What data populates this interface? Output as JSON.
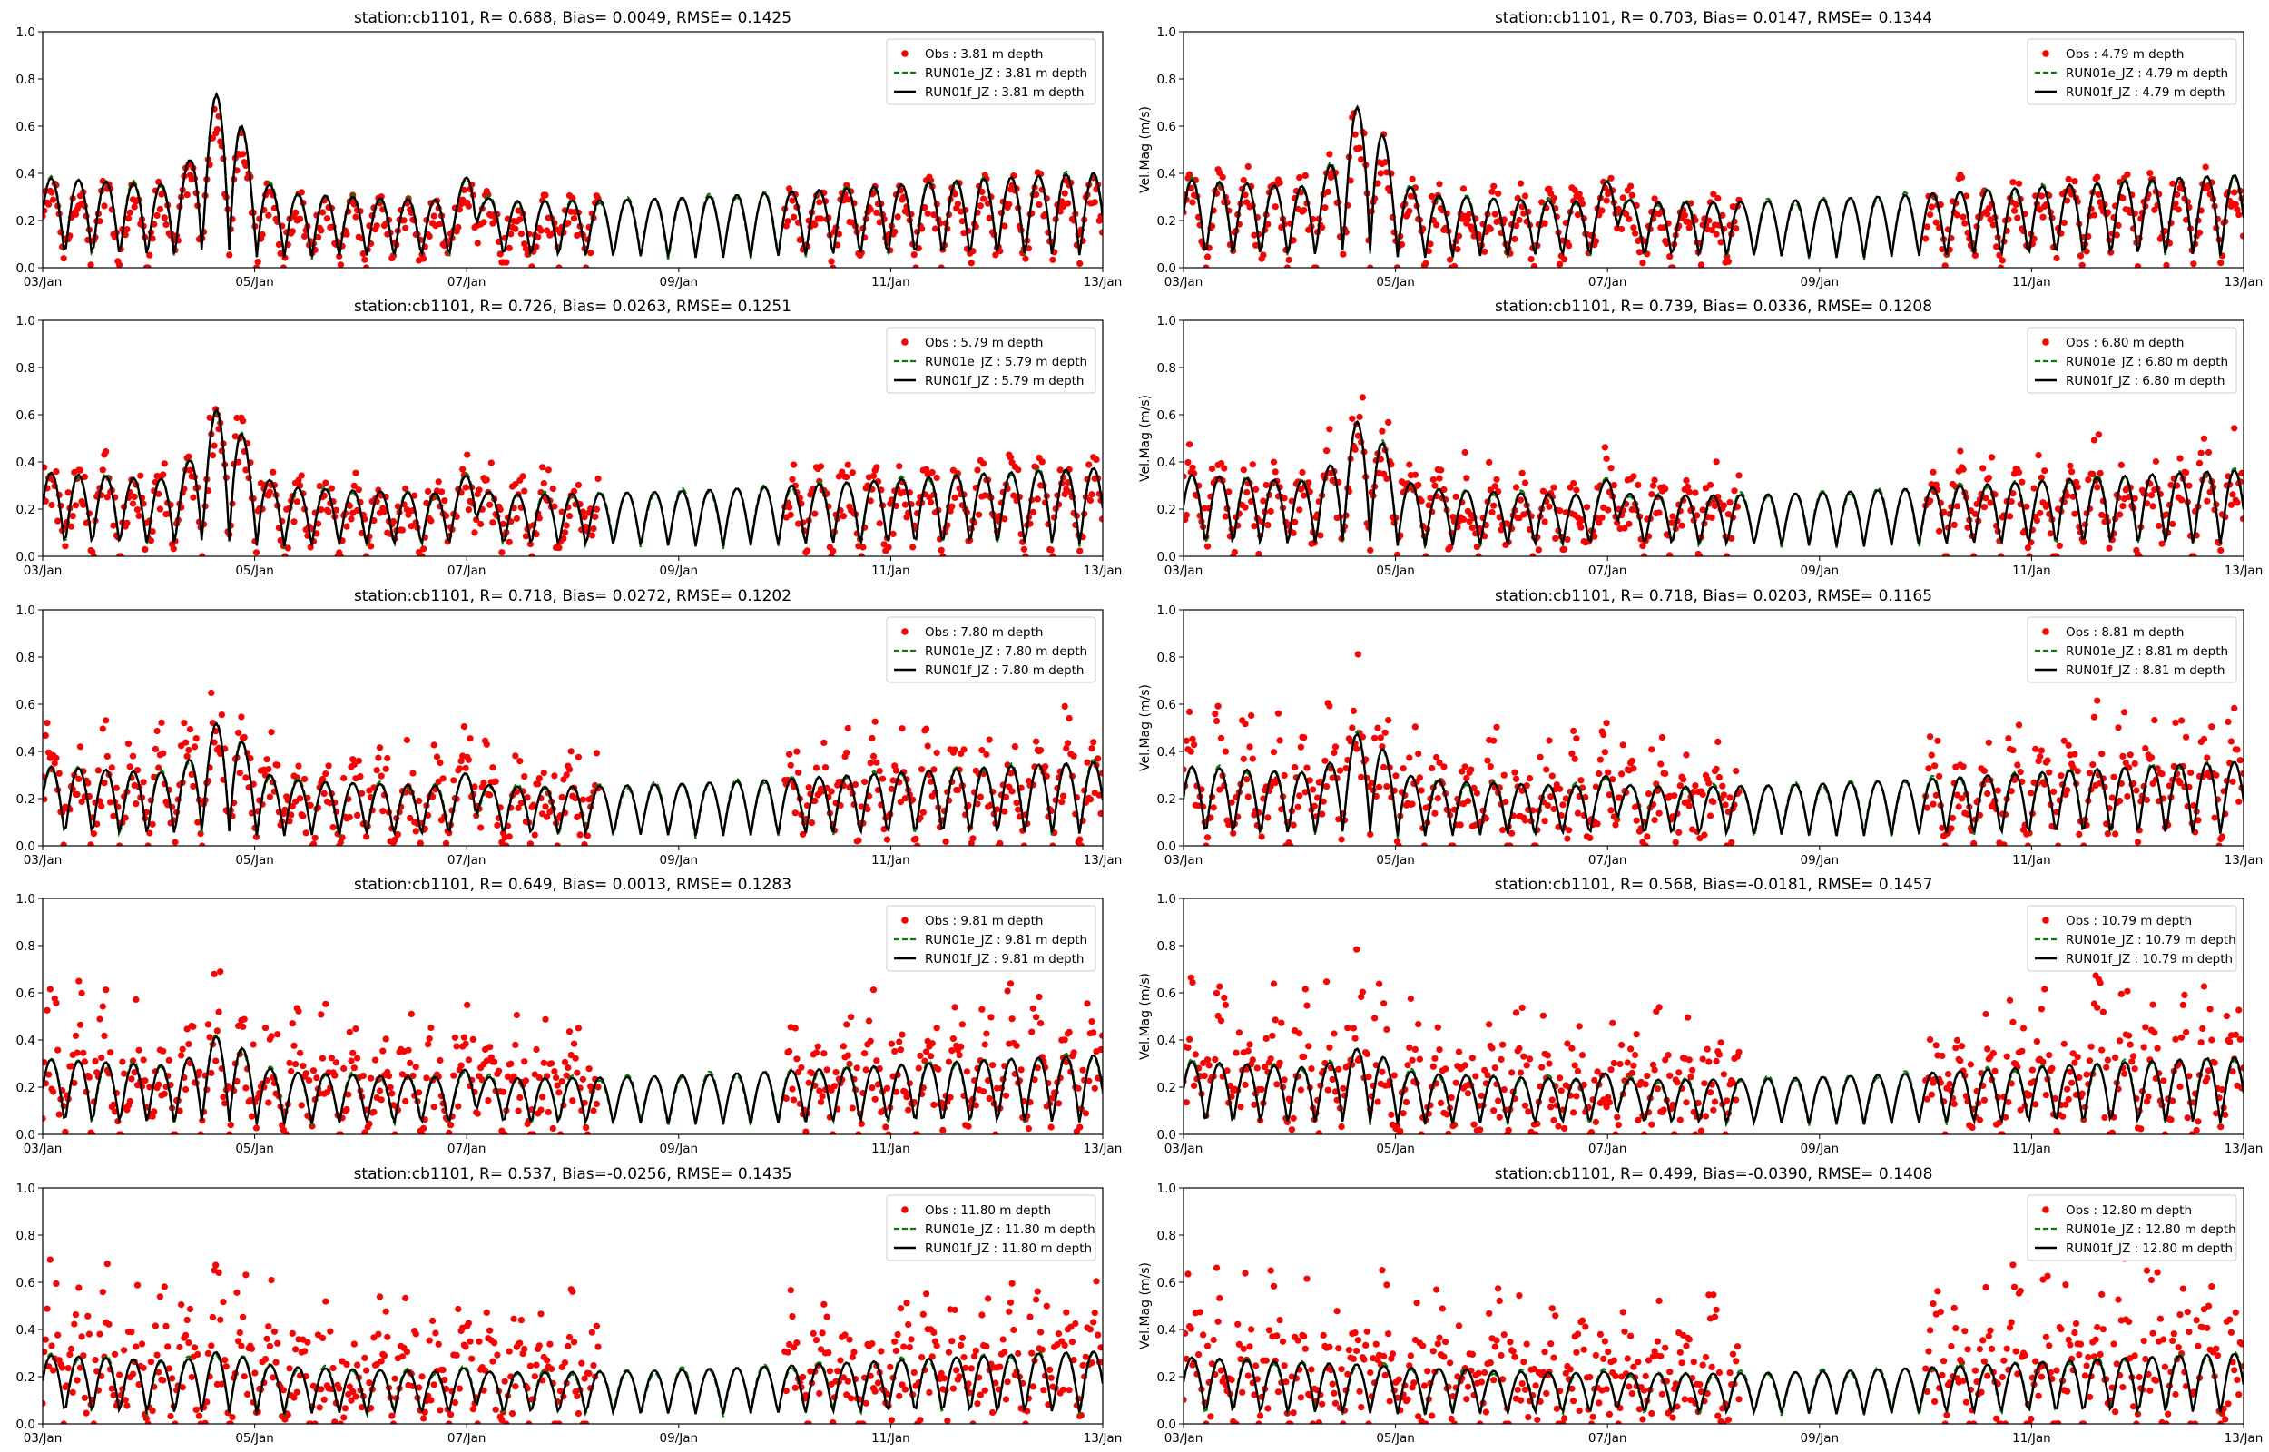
{
  "figure": {
    "x_range_days": [
      0,
      10
    ],
    "x_tick_labels": [
      "03/Jan",
      "05/Jan",
      "07/Jan",
      "09/Jan",
      "11/Jan",
      "13/Jan"
    ],
    "x_tick_values": [
      0,
      2,
      4,
      6,
      8,
      10
    ],
    "y_tick_labels": [
      "0.0",
      "0.2",
      "0.4",
      "0.6",
      "0.8",
      "1.0"
    ],
    "y_tick_values": [
      0,
      0.2,
      0.4,
      0.6,
      0.8,
      1.0
    ],
    "colors": {
      "obs": "#ff0000",
      "run01e": "#008000",
      "run01f": "#000000"
    }
  },
  "chart_data": [
    {
      "type": "line",
      "title": "station:cb1101, R= 0.688, Bias= 0.0049, RMSE= 0.1425",
      "ylabel": "",
      "ylim": [
        0,
        1.0
      ],
      "depth": 3.81,
      "amp": 0.38,
      "series": [
        {
          "name": "Obs : 3.81 m depth"
        },
        {
          "name": "RUN01e_JZ : 3.81 m depth"
        },
        {
          "name": "RUN01f_JZ : 3.81 m depth"
        }
      ]
    },
    {
      "type": "line",
      "title": "station:cb1101, R= 0.703, Bias= 0.0147, RMSE= 0.1344",
      "ylabel": "Vel.Mag (m/s)",
      "ylim": [
        0,
        1.0
      ],
      "depth": 4.79,
      "amp": 0.37,
      "series": [
        {
          "name": "Obs : 4.79 m depth"
        },
        {
          "name": "RUN01e_JZ : 4.79 m depth"
        },
        {
          "name": "RUN01f_JZ : 4.79 m depth"
        }
      ]
    },
    {
      "type": "line",
      "title": "station:cb1101, R= 0.726, Bias= 0.0263, RMSE= 0.1251",
      "ylabel": "",
      "ylim": [
        0,
        1.0
      ],
      "depth": 5.79,
      "amp": 0.35,
      "series": [
        {
          "name": "Obs : 5.79 m depth"
        },
        {
          "name": "RUN01e_JZ : 5.79 m depth"
        },
        {
          "name": "RUN01f_JZ : 5.79 m depth"
        }
      ]
    },
    {
      "type": "line",
      "title": "station:cb1101, R= 0.739, Bias= 0.0336, RMSE= 0.1208",
      "ylabel": "Vel.Mag (m/s)",
      "ylim": [
        0,
        1.0
      ],
      "depth": 6.8,
      "amp": 0.34,
      "series": [
        {
          "name": "Obs : 6.80 m depth"
        },
        {
          "name": "RUN01e_JZ : 6.80 m depth"
        },
        {
          "name": "RUN01f_JZ : 6.80 m depth"
        }
      ]
    },
    {
      "type": "line",
      "title": "station:cb1101, R= 0.718, Bias= 0.0272, RMSE= 0.1202",
      "ylabel": "",
      "ylim": [
        0,
        1.0
      ],
      "depth": 7.8,
      "amp": 0.33,
      "series": [
        {
          "name": "Obs : 7.80 m depth"
        },
        {
          "name": "RUN01e_JZ : 7.80 m depth"
        },
        {
          "name": "RUN01f_JZ : 7.80 m depth"
        }
      ]
    },
    {
      "type": "line",
      "title": "station:cb1101, R= 0.718, Bias= 0.0203, RMSE= 0.1165",
      "ylabel": "Vel.Mag (m/s)",
      "ylim": [
        0,
        1.0
      ],
      "depth": 8.81,
      "amp": 0.33,
      "series": [
        {
          "name": "Obs : 8.81 m depth"
        },
        {
          "name": "RUN01e_JZ : 8.81 m depth"
        },
        {
          "name": "RUN01f_JZ : 8.81 m depth"
        }
      ]
    },
    {
      "type": "line",
      "title": "station:cb1101, R= 0.649, Bias= 0.0013, RMSE= 0.1283",
      "ylabel": "",
      "ylim": [
        0,
        1.0
      ],
      "depth": 9.81,
      "amp": 0.31,
      "series": [
        {
          "name": "Obs : 9.81 m depth"
        },
        {
          "name": "RUN01e_JZ : 9.81 m depth"
        },
        {
          "name": "RUN01f_JZ : 9.81 m depth"
        }
      ]
    },
    {
      "type": "line",
      "title": "station:cb1101, R= 0.568, Bias=-0.0181, RMSE= 0.1457",
      "ylabel": "Vel.Mag (m/s)",
      "ylim": [
        0,
        1.0
      ],
      "depth": 10.79,
      "amp": 0.3,
      "series": [
        {
          "name": "Obs : 10.79 m depth"
        },
        {
          "name": "RUN01e_JZ : 10.79 m depth"
        },
        {
          "name": "RUN01f_JZ : 10.79 m depth"
        }
      ]
    },
    {
      "type": "line",
      "title": "station:cb1101, R= 0.537, Bias=-0.0256, RMSE= 0.1435",
      "ylabel": "",
      "ylim": [
        0,
        1.0
      ],
      "depth": 11.8,
      "amp": 0.28,
      "series": [
        {
          "name": "Obs : 11.80 m depth"
        },
        {
          "name": "RUN01e_JZ : 11.80 m depth"
        },
        {
          "name": "RUN01f_JZ : 11.80 m depth"
        }
      ]
    },
    {
      "type": "line",
      "title": "station:cb1101, R= 0.499, Bias=-0.0390, RMSE= 0.1408",
      "ylabel": "Vel.Mag (m/s)",
      "ylim": [
        0,
        1.0
      ],
      "depth": 12.8,
      "amp": 0.27,
      "series": [
        {
          "name": "Obs : 12.80 m depth"
        },
        {
          "name": "RUN01e_JZ : 12.80 m depth"
        },
        {
          "name": "RUN01f_JZ : 12.80 m depth"
        }
      ]
    }
  ]
}
